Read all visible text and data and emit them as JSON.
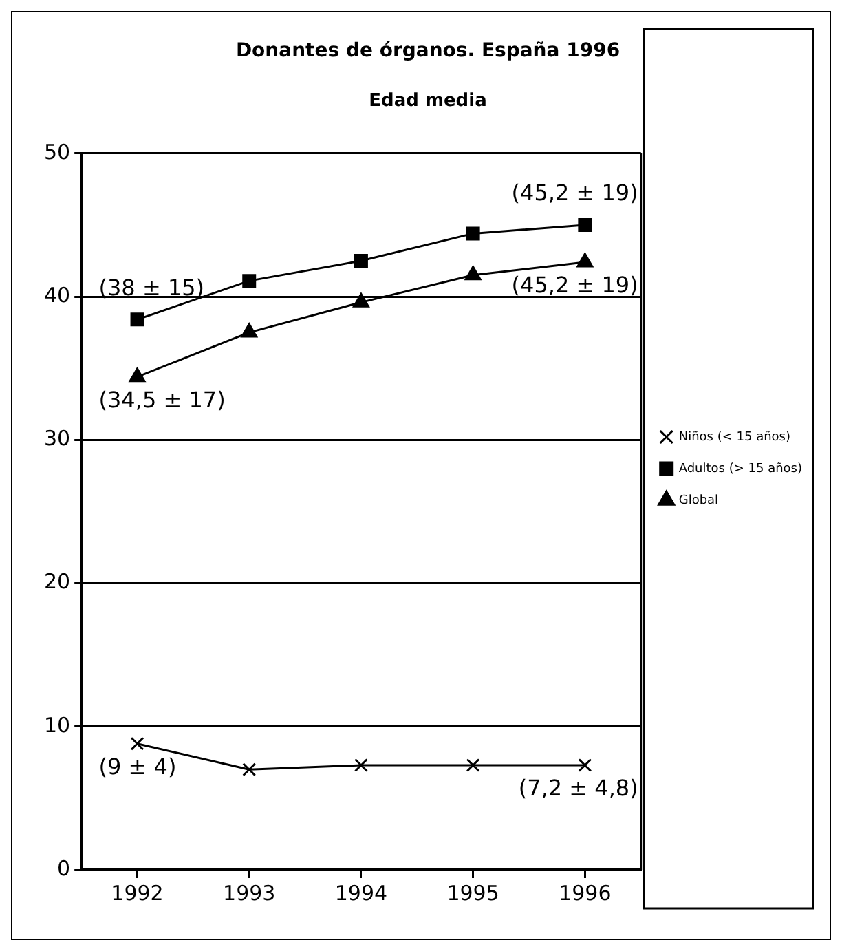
{
  "chart_data": {
    "type": "line",
    "title": "Donantes de órganos. España 1996",
    "subtitle": "Edad media",
    "categories": [
      "1992",
      "1993",
      "1994",
      "1995",
      "1996"
    ],
    "series": [
      {
        "name": "Niños (< 15 años)",
        "color": "#000000",
        "marker": "cross",
        "values": [
          8.8,
          7.0,
          7.3,
          7.3,
          7.3
        ]
      },
      {
        "name": "Adultos (> 15 años)",
        "color": "#000000",
        "marker": "square",
        "values": [
          38.4,
          41.1,
          42.5,
          44.4,
          45.0
        ]
      },
      {
        "name": "Global",
        "color": "#000000",
        "marker": "triangle",
        "values": [
          34.4,
          37.5,
          39.6,
          41.5,
          42.4
        ]
      }
    ],
    "ylim": [
      0,
      50
    ],
    "yticks": [
      0,
      10,
      20,
      30,
      40,
      50
    ],
    "grid": "y",
    "legend": "right",
    "line_style": "solid",
    "annotations": [
      {
        "text": "(38 ± 15)",
        "x": "1992",
        "y": 38.4
      },
      {
        "text": "(45,2 ± 19)",
        "x": "1996",
        "y": 45.0
      },
      {
        "text": "(34,5 ± 17)",
        "x": "1992",
        "y": 34.4
      },
      {
        "text": "(45,2 ± 19)",
        "x": "1996",
        "y": 42.4
      },
      {
        "text": "(9 ± 4)",
        "x": "1992",
        "y": 8.8
      },
      {
        "text": "(7,2 ± 4,8)",
        "x": "1996",
        "y": 7.3
      }
    ]
  }
}
